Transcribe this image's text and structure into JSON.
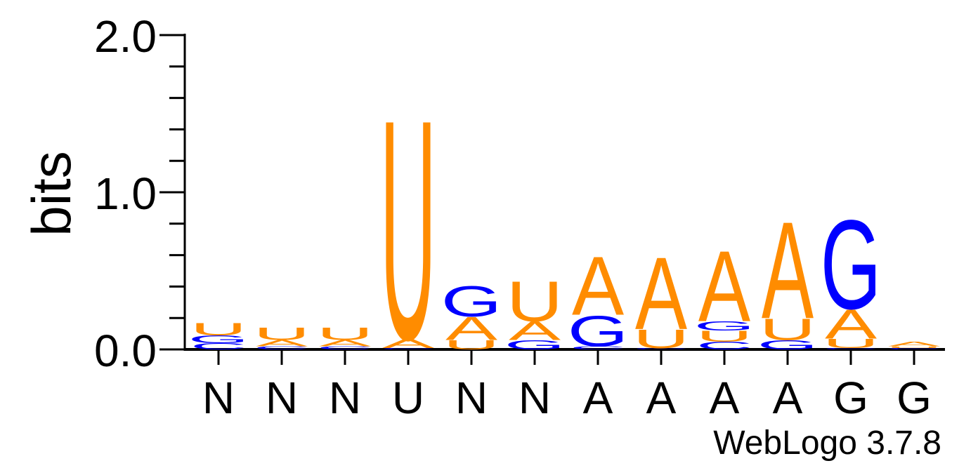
{
  "chart_data": {
    "type": "sequence-logo",
    "ylabel": "bits",
    "ylim": [
      0,
      2
    ],
    "yticks": [
      "0.0",
      "1.0",
      "2.0"
    ],
    "x_labels": [
      "N",
      "N",
      "N",
      "U",
      "N",
      "N",
      "A",
      "A",
      "A",
      "A",
      "G",
      "G"
    ],
    "colors": {
      "A": "#ff8c00",
      "U": "#ff8c00",
      "G": "#0000ff",
      "C": "#0000ff"
    },
    "positions": [
      {
        "label": "N",
        "stack": [
          {
            "letter": "C",
            "h": 0.04
          },
          {
            "letter": "G",
            "h": 0.05
          },
          {
            "letter": "U",
            "h": 0.08
          }
        ]
      },
      {
        "label": "N",
        "stack": [
          {
            "letter": "C",
            "h": 0.02
          },
          {
            "letter": "A",
            "h": 0.04
          },
          {
            "letter": "U",
            "h": 0.08
          }
        ]
      },
      {
        "label": "N",
        "stack": [
          {
            "letter": "C",
            "h": 0.02
          },
          {
            "letter": "A",
            "h": 0.04
          },
          {
            "letter": "U",
            "h": 0.08
          }
        ]
      },
      {
        "label": "U",
        "stack": [
          {
            "letter": "C",
            "h": 0.01
          },
          {
            "letter": "A",
            "h": 0.06
          },
          {
            "letter": "U",
            "h": 1.43
          }
        ]
      },
      {
        "label": "N",
        "stack": [
          {
            "letter": "U",
            "h": 0.06
          },
          {
            "letter": "A",
            "h": 0.15
          },
          {
            "letter": "G",
            "h": 0.2
          }
        ]
      },
      {
        "label": "N",
        "stack": [
          {
            "letter": "G",
            "h": 0.06
          },
          {
            "letter": "A",
            "h": 0.12
          },
          {
            "letter": "U",
            "h": 0.26
          }
        ]
      },
      {
        "label": "A",
        "stack": [
          {
            "letter": "C",
            "h": 0.02
          },
          {
            "letter": "G",
            "h": 0.2
          },
          {
            "letter": "A",
            "h": 0.38
          }
        ]
      },
      {
        "label": "A",
        "stack": [
          {
            "letter": "C",
            "h": 0.01
          },
          {
            "letter": "U",
            "h": 0.12
          },
          {
            "letter": "A",
            "h": 0.47
          }
        ]
      },
      {
        "label": "A",
        "stack": [
          {
            "letter": "C",
            "h": 0.05
          },
          {
            "letter": "U",
            "h": 0.07
          },
          {
            "letter": "G",
            "h": 0.06
          },
          {
            "letter": "A",
            "h": 0.46
          }
        ]
      },
      {
        "label": "A",
        "stack": [
          {
            "letter": "G",
            "h": 0.06
          },
          {
            "letter": "U",
            "h": 0.14
          },
          {
            "letter": "A",
            "h": 0.63
          }
        ]
      },
      {
        "label": "G",
        "stack": [
          {
            "letter": "C",
            "h": 0.01
          },
          {
            "letter": "U",
            "h": 0.06
          },
          {
            "letter": "A",
            "h": 0.19
          },
          {
            "letter": "G",
            "h": 0.58
          }
        ]
      },
      {
        "label": "G",
        "stack": [
          {
            "letter": "C",
            "h": 0.01
          },
          {
            "letter": "U",
            "h": 0.01
          },
          {
            "letter": "A",
            "h": 0.03
          }
        ]
      }
    ]
  },
  "footer": "WebLogo 3.7.8"
}
